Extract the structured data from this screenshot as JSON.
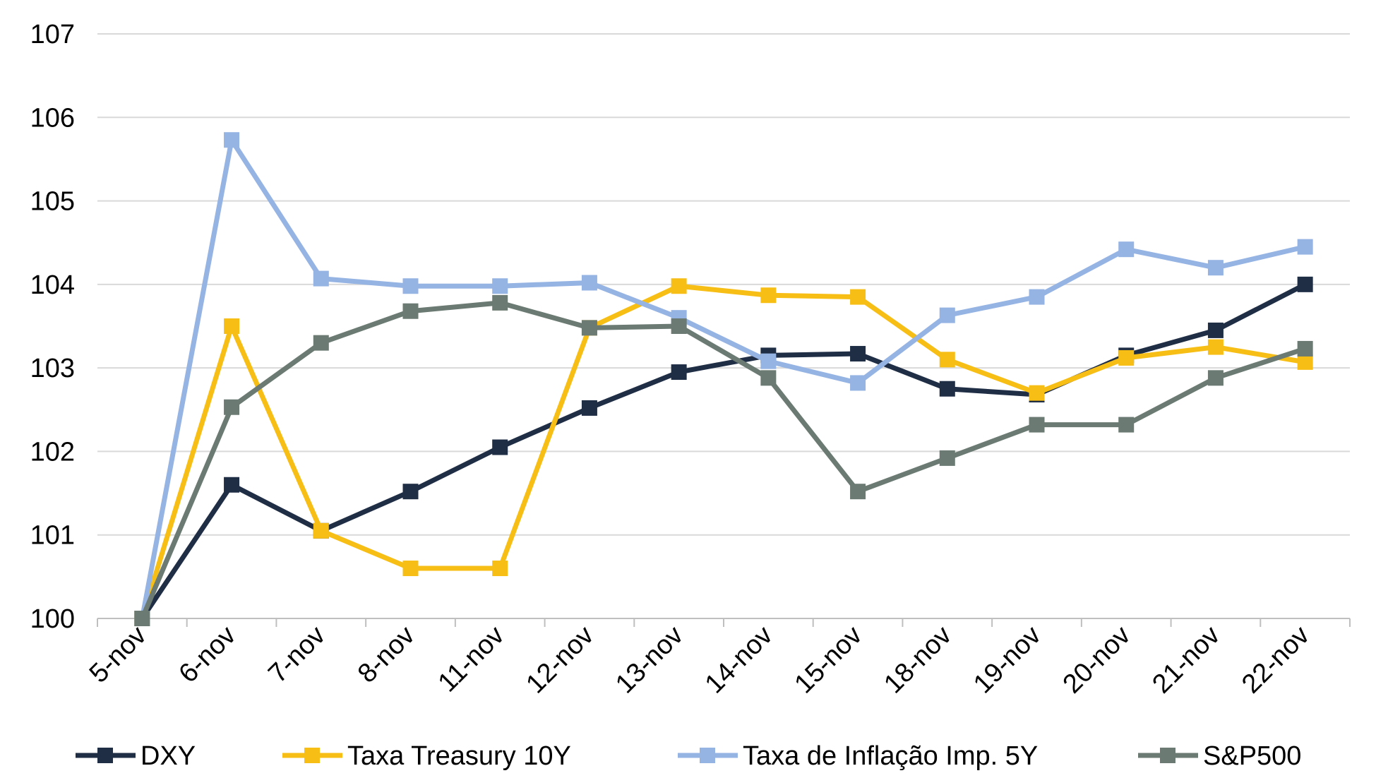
{
  "chart_data": {
    "type": "line",
    "title": "",
    "xlabel": "",
    "ylabel": "",
    "categories": [
      "5-nov",
      "6-nov",
      "7-nov",
      "8-nov",
      "11-nov",
      "12-nov",
      "13-nov",
      "14-nov",
      "15-nov",
      "18-nov",
      "19-nov",
      "20-nov",
      "21-nov",
      "22-nov"
    ],
    "ylim": [
      100,
      107
    ],
    "yticks": [
      "100",
      "101",
      "102",
      "103",
      "104",
      "105",
      "106",
      "107"
    ],
    "grid": true,
    "legend_position": "bottom",
    "series": [
      {
        "name": "DXY",
        "color": "#1f2d45",
        "values": [
          100,
          101.6,
          101.05,
          101.52,
          102.05,
          102.52,
          102.95,
          103.15,
          103.17,
          102.75,
          102.68,
          103.15,
          103.45,
          104.0
        ]
      },
      {
        "name": "Taxa Treasury 10Y",
        "color": "#f7be16",
        "values": [
          100,
          103.5,
          101.05,
          100.6,
          100.6,
          103.48,
          103.98,
          103.87,
          103.85,
          103.1,
          102.7,
          103.12,
          103.25,
          103.07
        ]
      },
      {
        "name": "Taxa de Inflação Imp. 5Y",
        "color": "#95b3e3",
        "values": [
          100,
          105.73,
          104.07,
          103.98,
          103.98,
          104.02,
          103.6,
          103.08,
          102.82,
          103.63,
          103.85,
          104.42,
          104.2,
          104.45
        ]
      },
      {
        "name": "S&P500",
        "color": "#6b7a72",
        "values": [
          100,
          102.53,
          103.3,
          103.68,
          103.78,
          103.48,
          103.5,
          102.88,
          101.52,
          101.92,
          102.32,
          102.32,
          102.88,
          103.23
        ]
      }
    ]
  }
}
